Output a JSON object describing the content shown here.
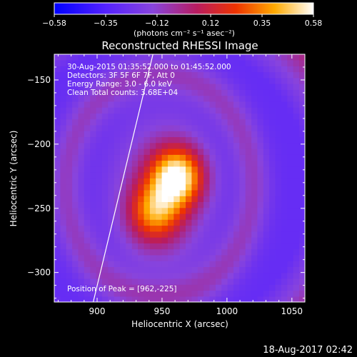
{
  "chart_data": {
    "type": "heatmap",
    "title": "Reconstructed RHESSI Image",
    "xlabel": "Heliocentric X (arcsec)",
    "ylabel": "Heliocentric Y (arcsec)",
    "xlim": [
      867,
      1060
    ],
    "ylim": [
      -323,
      -130
    ],
    "x_ticks": [
      900,
      950,
      1000,
      1050
    ],
    "x_tick_labels": [
      "900",
      "950",
      "1000",
      "1050"
    ],
    "y_ticks": [
      -150,
      -200,
      -250,
      -300
    ],
    "y_tick_labels": [
      "−150",
      "−200",
      "−250",
      "−300"
    ],
    "colorbar": {
      "colormap": "blue-purple-red-yellow-white",
      "range": [
        -0.58,
        0.58
      ],
      "ticks": [
        -0.58,
        -0.35,
        -0.12,
        0.12,
        0.35,
        0.58
      ],
      "tick_labels": [
        "−0.58",
        "−0.35",
        "−0.12",
        "0.12",
        "0.35",
        "0.58"
      ],
      "unit_label": "(photons cm⁻² s⁻¹ asec⁻²)"
    },
    "annotations": [
      "30-Aug-2015 01:35:52.000 to 01:45:52.000",
      "Detectors: 3F 5F 6F 7F, Att 0",
      "Energy Range: 3.0 - 6.0 keV",
      "Clean    Total counts: 3.68E+04",
      "Position of Peak = [962,-225]"
    ],
    "peak": {
      "x": 962,
      "y": -225
    },
    "sources": [
      {
        "x": 962,
        "y": -225,
        "amplitude": 0.58
      },
      {
        "x": 944,
        "y": -253,
        "amplitude": 0.34
      }
    ],
    "limb_line": [
      [
        897,
        -323
      ],
      [
        943,
        -130
      ]
    ],
    "footer_date": "18-Aug-2017 02:42"
  },
  "colors": {
    "background": "#000000",
    "text": "#ffffff",
    "limb": "#ffffff"
  }
}
